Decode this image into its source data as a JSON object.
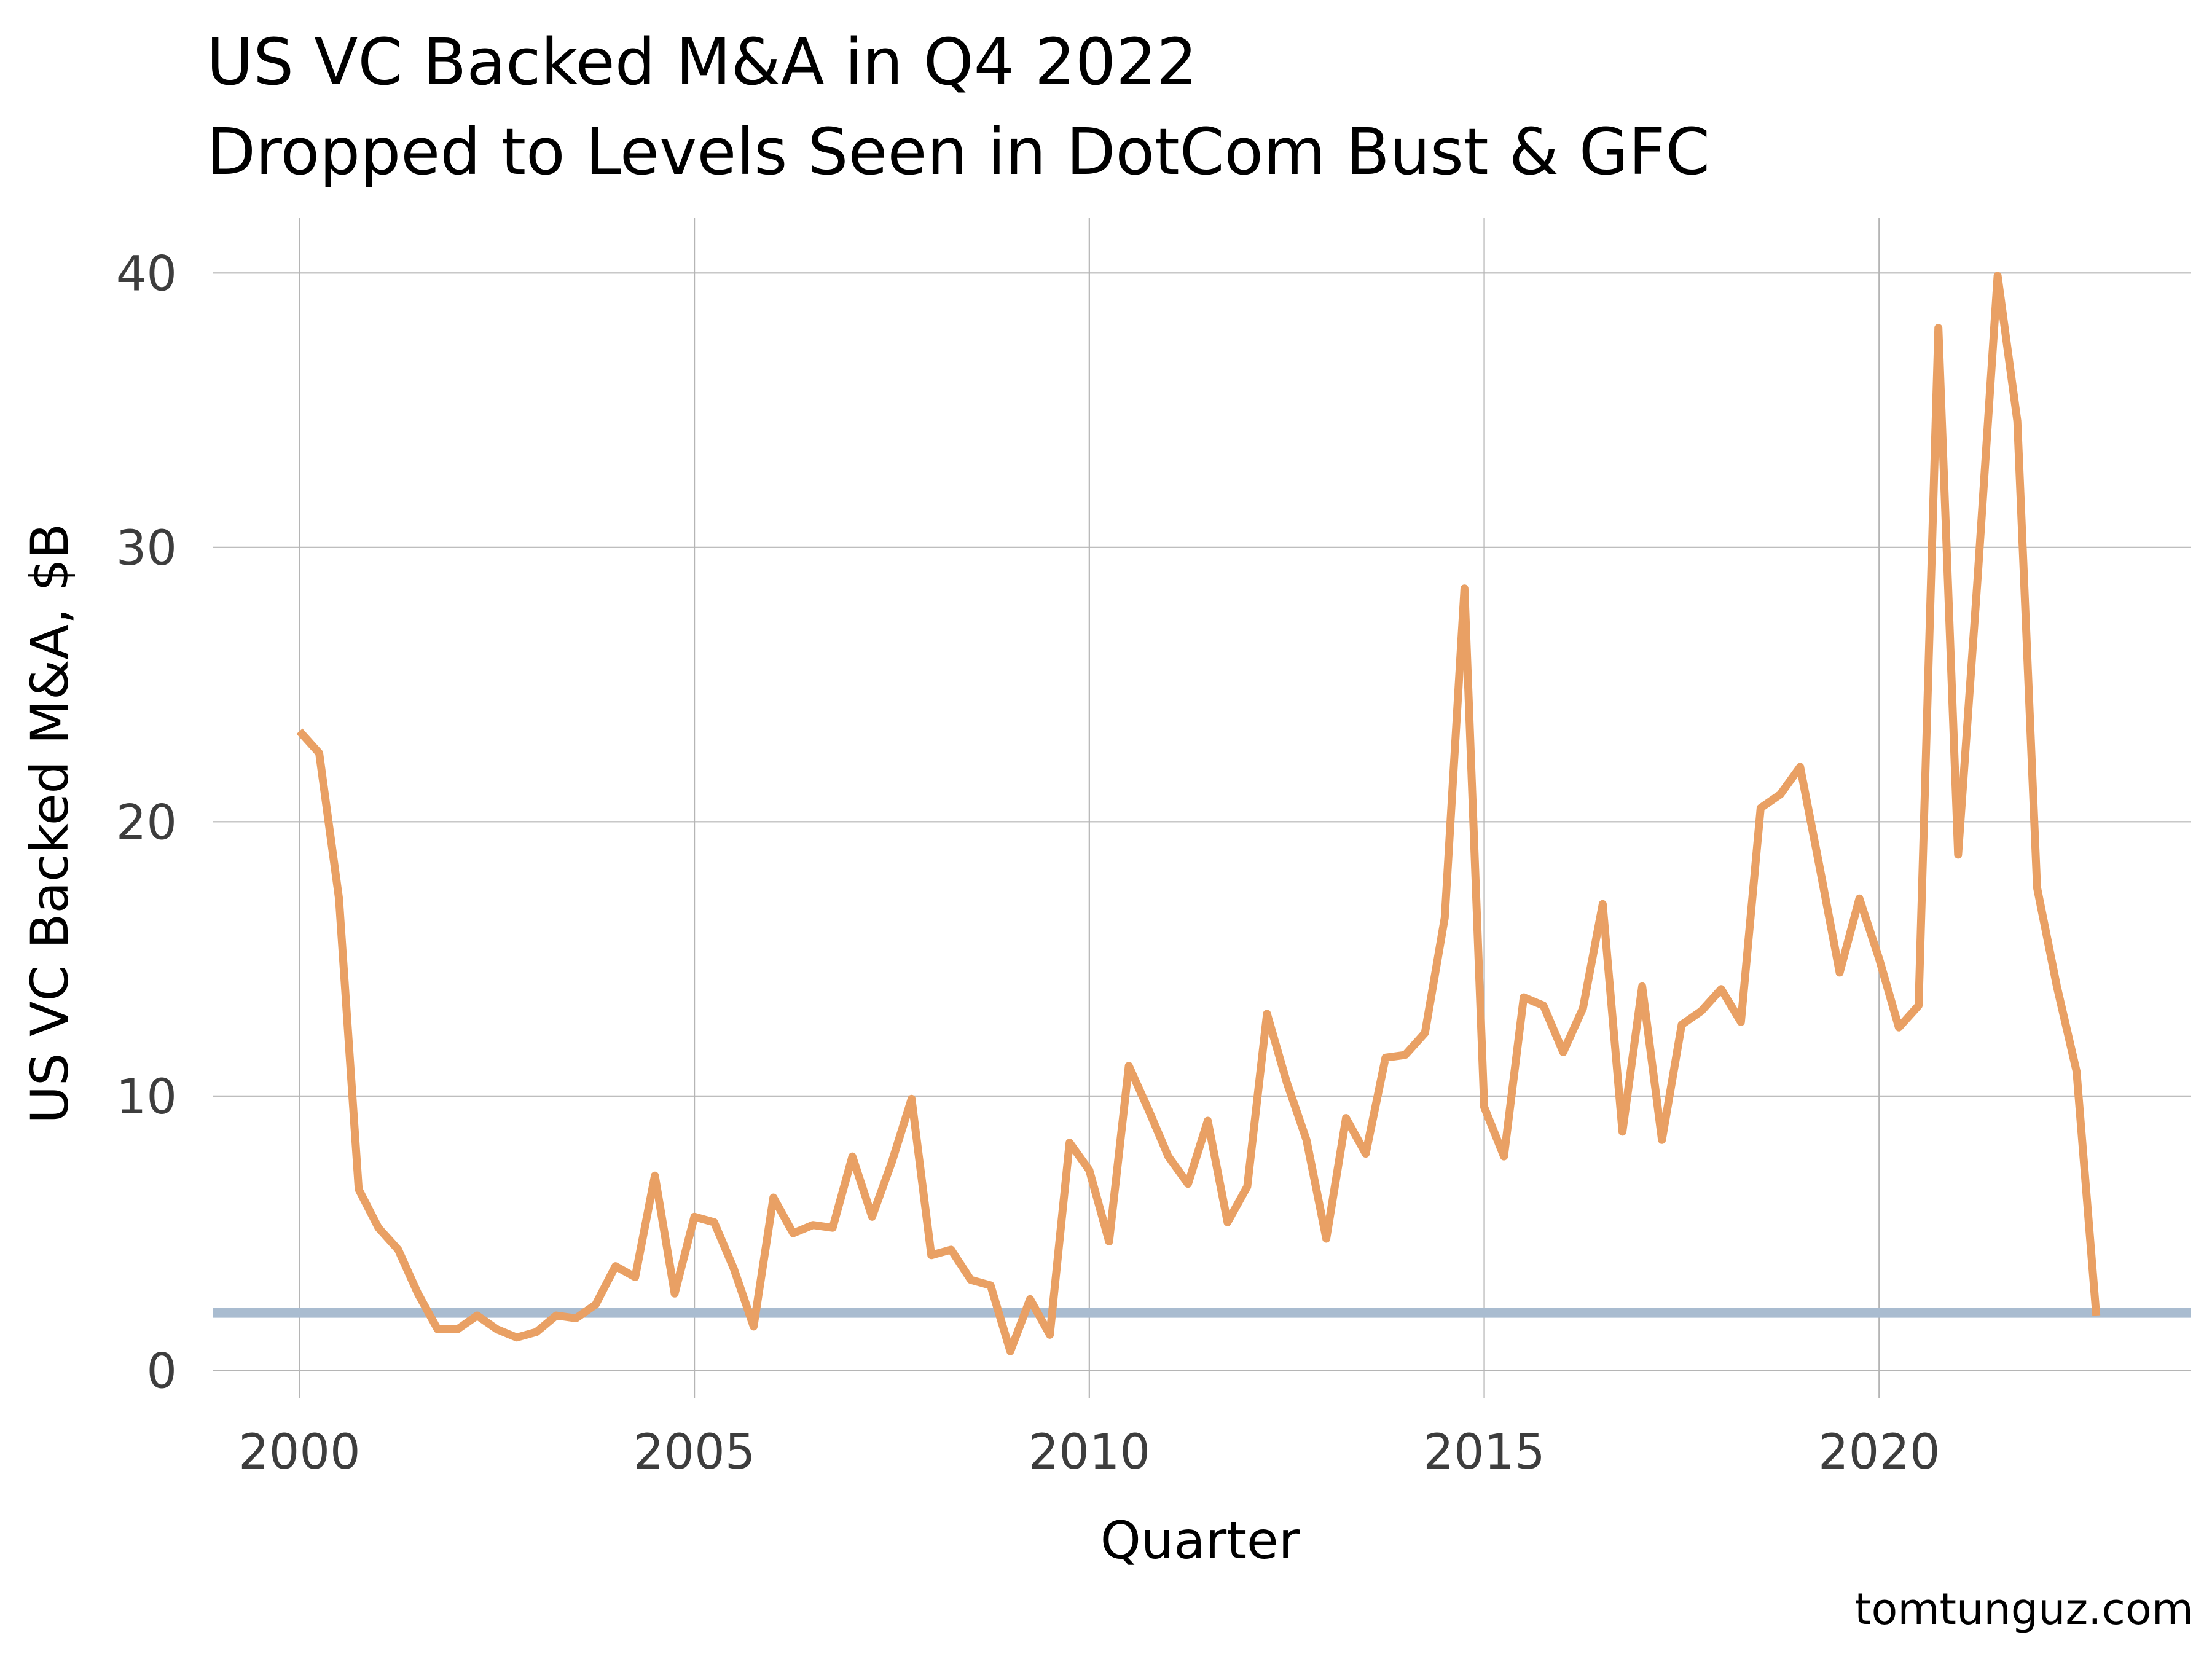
{
  "chart_data": {
    "type": "line",
    "title": [
      "US VC Backed M&A in Q4 2022",
      "Dropped to Levels Seen in DotCom Bust & GFC"
    ],
    "xlabel": "Quarter",
    "ylabel": "US VC Backed M&A, $B",
    "xlim": [
      1998.9,
      2023.95
    ],
    "ylim": [
      -1.0,
      42.0
    ],
    "x_ticks": [
      2000,
      2005,
      2010,
      2015,
      2020
    ],
    "y_ticks": [
      0,
      10,
      20,
      30,
      40
    ],
    "grid": true,
    "legend": "none",
    "colors": {
      "series": "#E9A064",
      "reference": "#A9BCD0",
      "grid": "#B5B5B5"
    },
    "series": [
      {
        "x": [
          2000.0,
          2000.25,
          2000.5,
          2000.75,
          2001.0,
          2001.25,
          2001.5,
          2001.75,
          2002.0,
          2002.25,
          2002.5,
          2002.75,
          2003.0,
          2003.25,
          2003.5,
          2003.75,
          2004.0,
          2004.25,
          2004.5,
          2004.75,
          2005.0,
          2005.25,
          2005.5,
          2005.75,
          2006.0,
          2006.25,
          2006.5,
          2006.75,
          2007.0,
          2007.25,
          2007.5,
          2007.75,
          2008.0,
          2008.25,
          2008.5,
          2008.75,
          2009.0,
          2009.25,
          2009.5,
          2009.75,
          2010.0,
          2010.25,
          2010.5,
          2010.75,
          2011.0,
          2011.25,
          2011.5,
          2011.75,
          2012.0,
          2012.25,
          2012.5,
          2012.75,
          2013.0,
          2013.25,
          2013.5,
          2013.75,
          2014.0,
          2014.25,
          2014.5,
          2014.75,
          2015.0,
          2015.25,
          2015.5,
          2015.75,
          2016.0,
          2016.25,
          2016.5,
          2016.75,
          2017.0,
          2017.25,
          2017.5,
          2017.75,
          2018.0,
          2018.25,
          2018.5,
          2018.75,
          2019.0,
          2019.25,
          2019.5,
          2019.75,
          2020.0,
          2020.25,
          2020.5,
          2020.75,
          2021.0,
          2021.25,
          2021.5,
          2021.75,
          2022.0,
          2022.25,
          2022.5,
          2022.75
        ],
        "values": [
          23.3,
          22.5,
          17.2,
          6.6,
          5.2,
          4.4,
          2.8,
          1.5,
          1.5,
          2.0,
          1.5,
          1.2,
          1.4,
          2.0,
          1.9,
          2.4,
          3.8,
          3.4,
          7.1,
          2.8,
          5.6,
          5.4,
          3.7,
          1.6,
          6.3,
          5.0,
          5.3,
          5.2,
          7.8,
          5.6,
          7.6,
          9.9,
          4.2,
          4.4,
          3.3,
          3.1,
          0.7,
          2.6,
          1.3,
          8.3,
          7.3,
          4.7,
          11.1,
          9.5,
          7.8,
          6.8,
          9.1,
          5.4,
          6.7,
          13.0,
          10.5,
          8.4,
          4.8,
          9.2,
          7.9,
          11.4,
          11.5,
          12.3,
          16.5,
          28.5,
          9.6,
          7.8,
          13.6,
          13.3,
          11.6,
          13.2,
          17.0,
          8.7,
          14.0,
          8.4,
          12.6,
          13.1,
          13.9,
          12.7,
          20.5,
          21.0,
          22.0,
          18.3,
          14.5,
          17.2,
          15.0,
          12.5,
          13.3,
          38.0,
          18.8,
          29.0,
          39.9,
          34.6,
          17.6,
          14.0,
          10.9,
          2.0
        ]
      }
    ],
    "reference_line": {
      "y": 2.1
    }
  },
  "credit": "tomtunguz.com"
}
